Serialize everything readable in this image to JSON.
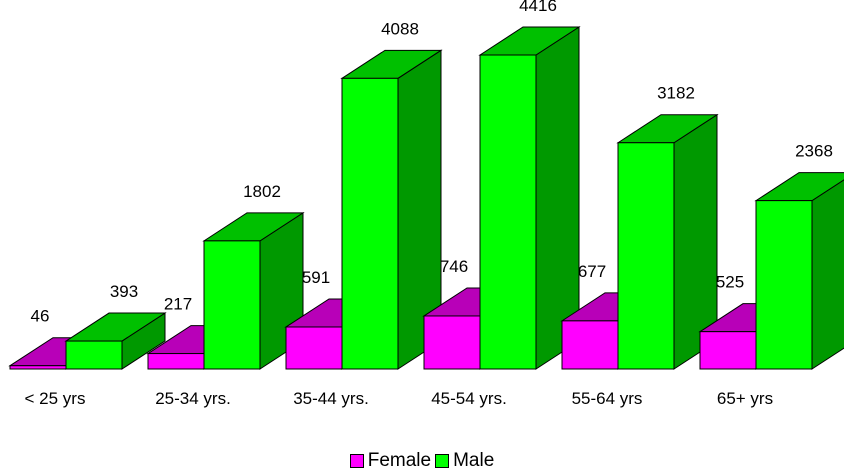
{
  "chart_data": {
    "type": "bar",
    "categories": [
      "< 25 yrs",
      "25-34 yrs.",
      "35-44 yrs.",
      "45-54 yrs.",
      "55-64 yrs",
      "65+ yrs"
    ],
    "series": [
      {
        "name": "Female",
        "values": [
          46,
          217,
          591,
          746,
          677,
          525
        ],
        "color": "#ff00ff",
        "top_color": "#b800b8",
        "side_color": "#9a009a"
      },
      {
        "name": "Male",
        "values": [
          393,
          1802,
          4088,
          4416,
          3182,
          2368
        ],
        "color": "#00ff00",
        "top_color": "#00c000",
        "side_color": "#009900"
      }
    ],
    "title": "",
    "xlabel": "",
    "ylabel": "",
    "ylim": [
      0,
      4416
    ],
    "grid": false,
    "legend": "bottom-center",
    "style": "3d-clustered"
  }
}
